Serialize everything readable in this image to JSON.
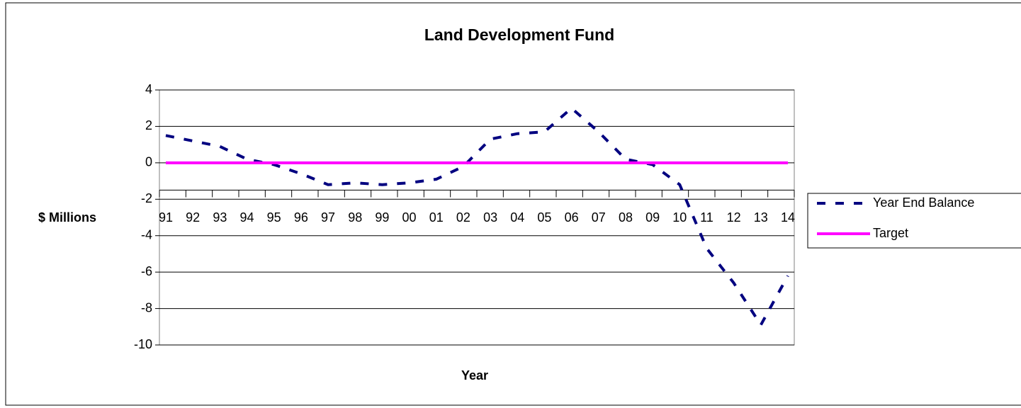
{
  "chart_data": {
    "type": "line",
    "title": "Land Development Fund",
    "x_label": "Year",
    "y_label": "$ Millions",
    "categories": [
      "91",
      "92",
      "93",
      "94",
      "95",
      "96",
      "97",
      "98",
      "99",
      "00",
      "01",
      "02",
      "03",
      "04",
      "05",
      "06",
      "07",
      "08",
      "09",
      "10",
      "11",
      "12",
      "13",
      "14"
    ],
    "series": [
      {
        "name": "Year End Balance",
        "color": "#000080",
        "dashed": true,
        "values": [
          1.5,
          1.2,
          0.9,
          0.2,
          -0.1,
          -0.6,
          -1.2,
          -1.1,
          -1.2,
          -1.1,
          -0.9,
          -0.2,
          1.3,
          1.6,
          1.7,
          3.0,
          1.7,
          0.2,
          -0.1,
          -1.2,
          -4.7,
          -6.6,
          -8.9,
          -6.2
        ]
      },
      {
        "name": "Target",
        "color": "#ff00ff",
        "dashed": false,
        "values": [
          0,
          0,
          0,
          0,
          0,
          0,
          0,
          0,
          0,
          0,
          0,
          0,
          0,
          0,
          0,
          0,
          0,
          0,
          0,
          0,
          0,
          0,
          0,
          0
        ]
      }
    ],
    "ylim": [
      -10,
      4
    ],
    "yticks": [
      -10,
      -8,
      -6,
      -4,
      -2,
      0,
      2,
      4
    ],
    "grid": true,
    "x_axis_crosses": -1.5,
    "legend": "right"
  }
}
